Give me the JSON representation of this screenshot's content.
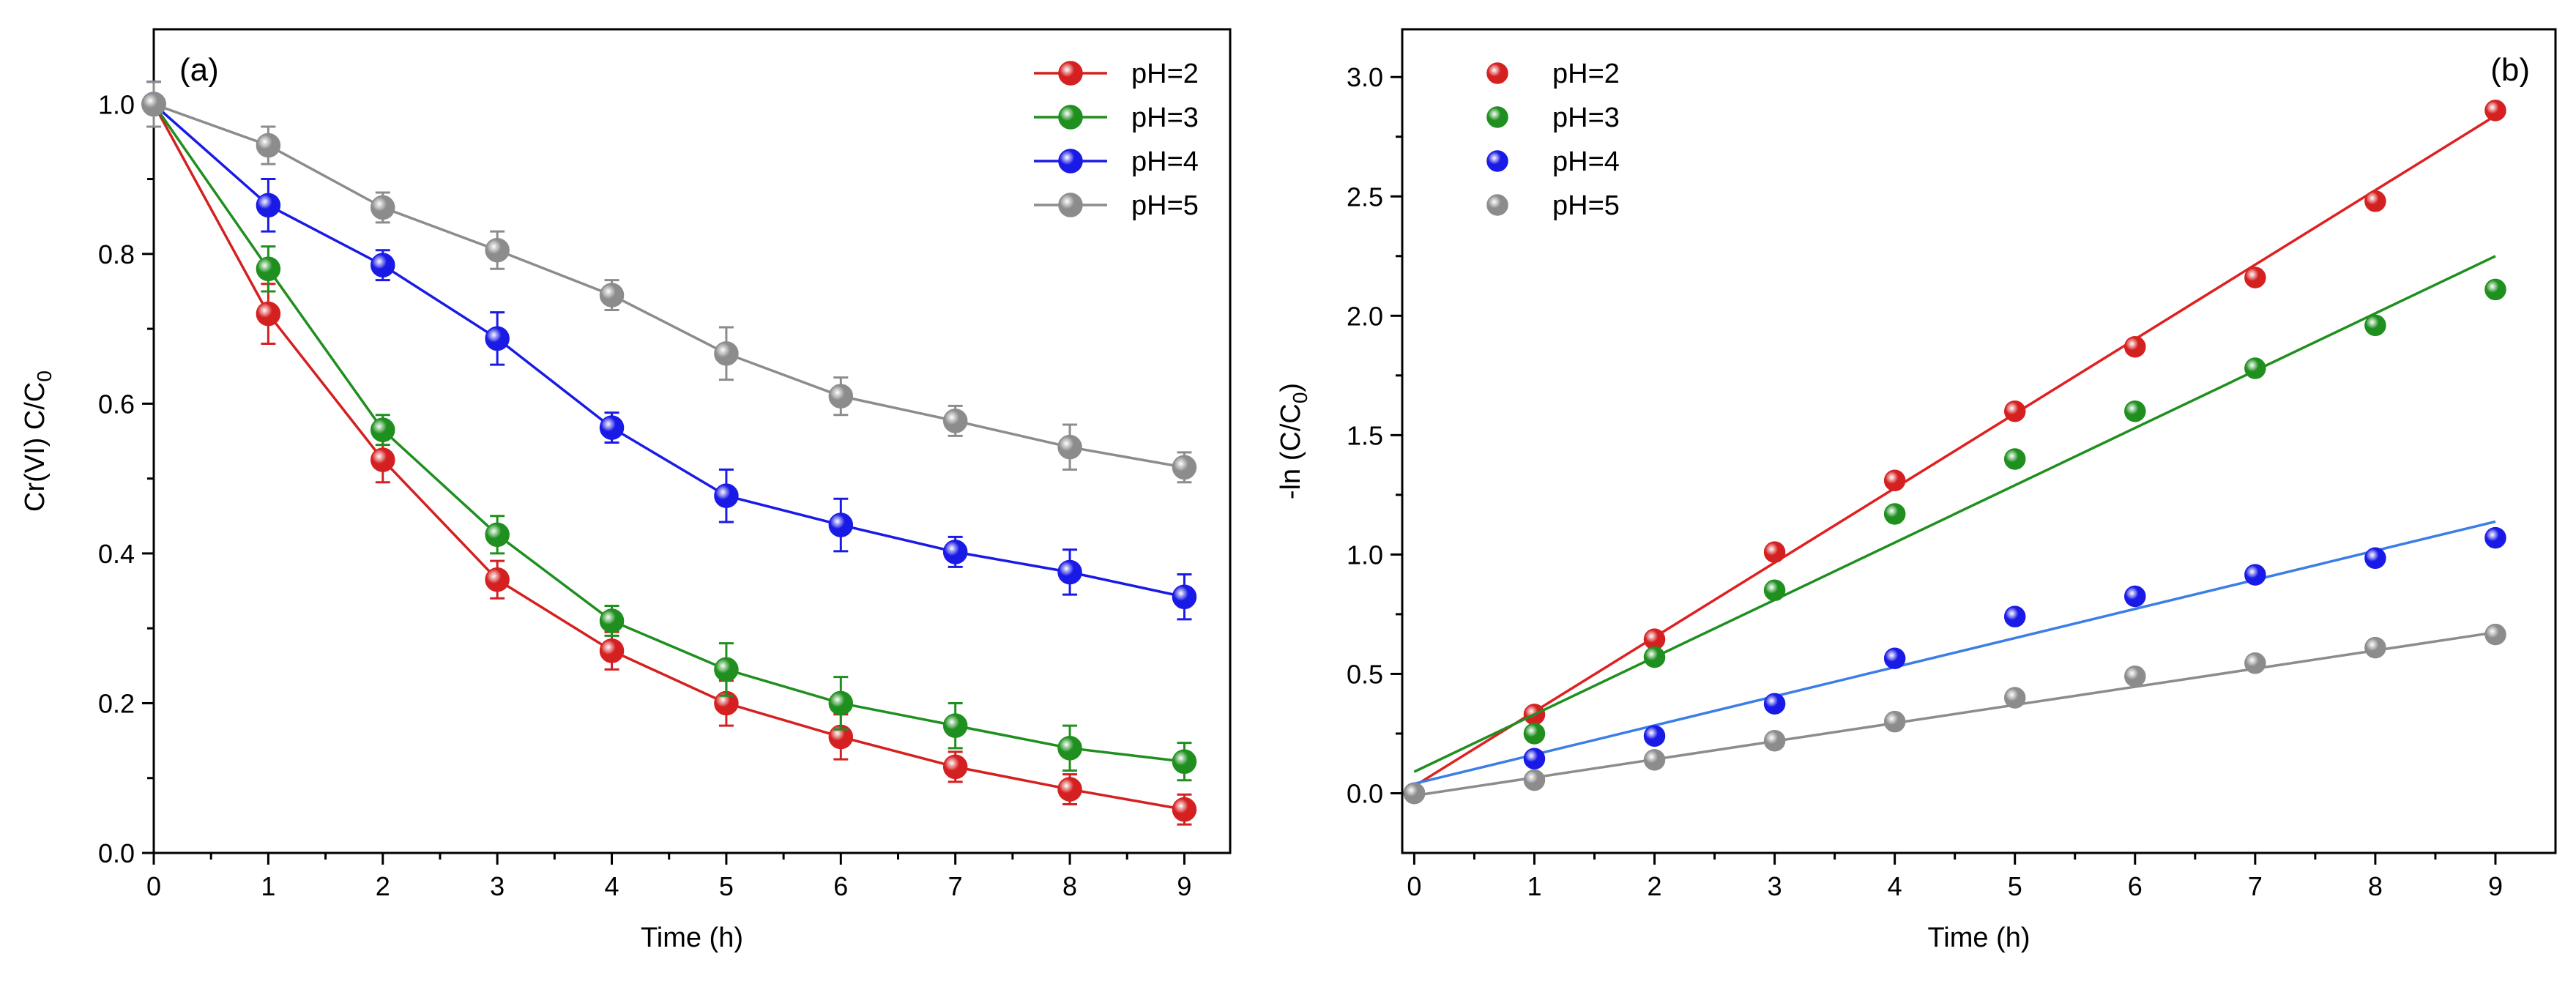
{
  "chart_data": [
    {
      "panel": "(a)",
      "type": "line",
      "title": "",
      "xlabel": "Time (h)",
      "ylabel_main": "Cr(VI) C/C",
      "ylabel_sub": "0",
      "xlim": [
        0,
        9.4
      ],
      "ylim": [
        0,
        1.1
      ],
      "xticks": [
        0,
        1,
        2,
        3,
        4,
        5,
        6,
        7,
        8,
        9
      ],
      "yticks": [
        0.0,
        0.2,
        0.4,
        0.6,
        0.8,
        1.0
      ],
      "ytick_labels": [
        "0.0",
        "0.2",
        "0.4",
        "0.6",
        "0.8",
        "1.0"
      ],
      "legend_position": "top-right",
      "x": [
        0,
        1,
        2,
        3,
        4,
        5,
        6,
        7,
        8,
        9
      ],
      "series": [
        {
          "name": "pH=2",
          "color": "#d42020",
          "values": [
            1.0,
            0.72,
            0.525,
            0.365,
            0.27,
            0.2,
            0.155,
            0.115,
            0.085,
            0.058
          ],
          "errors": [
            0.03,
            0.04,
            0.03,
            0.025,
            0.025,
            0.03,
            0.03,
            0.02,
            0.02,
            0.02
          ]
        },
        {
          "name": "pH=3",
          "color": "#1f8f1f",
          "values": [
            1.0,
            0.78,
            0.565,
            0.425,
            0.31,
            0.245,
            0.2,
            0.17,
            0.14,
            0.122
          ],
          "errors": [
            0.03,
            0.03,
            0.02,
            0.025,
            0.02,
            0.035,
            0.035,
            0.03,
            0.03,
            0.025
          ]
        },
        {
          "name": "pH=4",
          "color": "#1a1ae6",
          "values": [
            1.0,
            0.865,
            0.785,
            0.687,
            0.568,
            0.477,
            0.438,
            0.402,
            0.375,
            0.342
          ],
          "errors": [
            0.03,
            0.035,
            0.02,
            0.035,
            0.02,
            0.035,
            0.035,
            0.02,
            0.03,
            0.03
          ]
        },
        {
          "name": "pH=5",
          "color": "#8c8c8c",
          "values": [
            1.0,
            0.945,
            0.862,
            0.805,
            0.745,
            0.667,
            0.61,
            0.577,
            0.542,
            0.515
          ],
          "errors": [
            0.03,
            0.025,
            0.02,
            0.025,
            0.02,
            0.035,
            0.025,
            0.02,
            0.03,
            0.02
          ]
        }
      ]
    },
    {
      "panel": "(b)",
      "type": "scatter",
      "title": "",
      "xlabel": "Time (h)",
      "ylabel_main": "-ln (C/C",
      "ylabel_sub": "0",
      "ylabel_close": ")",
      "xlim": [
        -0.1,
        9.5
      ],
      "ylim": [
        -0.25,
        3.2
      ],
      "xticks": [
        0,
        1,
        2,
        3,
        4,
        5,
        6,
        7,
        8,
        9
      ],
      "yticks": [
        0.0,
        0.5,
        1.0,
        1.5,
        2.0,
        2.5,
        3.0
      ],
      "ytick_labels": [
        "0.0",
        "0.5",
        "1.0",
        "1.5",
        "2.0",
        "2.5",
        "3.0"
      ],
      "legend_position": "top-left",
      "x": [
        0,
        1,
        2,
        3,
        4,
        5,
        6,
        7,
        8,
        9
      ],
      "series": [
        {
          "name": "pH=2",
          "color": "#d42020",
          "line_color": "#e02020",
          "values": [
            0.0,
            0.33,
            0.645,
            1.01,
            1.31,
            1.6,
            1.87,
            2.16,
            2.48,
            2.86
          ],
          "fit": {
            "slope": 0.312,
            "intercept": 0.03
          }
        },
        {
          "name": "pH=3",
          "color": "#1f8f1f",
          "line_color": "#1f8f1f",
          "values": [
            0.0,
            0.25,
            0.57,
            0.85,
            1.17,
            1.4,
            1.6,
            1.78,
            1.96,
            2.11
          ],
          "fit": {
            "slope": 0.24,
            "intercept": 0.09
          }
        },
        {
          "name": "pH=4",
          "color": "#1a1ae6",
          "line_color": "#3a7ee6",
          "values": [
            0.0,
            0.145,
            0.24,
            0.375,
            0.565,
            0.74,
            0.825,
            0.915,
            0.985,
            1.07
          ],
          "fit": {
            "slope": 0.122,
            "intercept": 0.04
          }
        },
        {
          "name": "pH=5",
          "color": "#8c8c8c",
          "line_color": "#8c8c8c",
          "values": [
            0.0,
            0.055,
            0.14,
            0.22,
            0.3,
            0.4,
            0.49,
            0.545,
            0.61,
            0.665
          ],
          "fit": {
            "slope": 0.076,
            "intercept": -0.01
          }
        }
      ]
    }
  ]
}
